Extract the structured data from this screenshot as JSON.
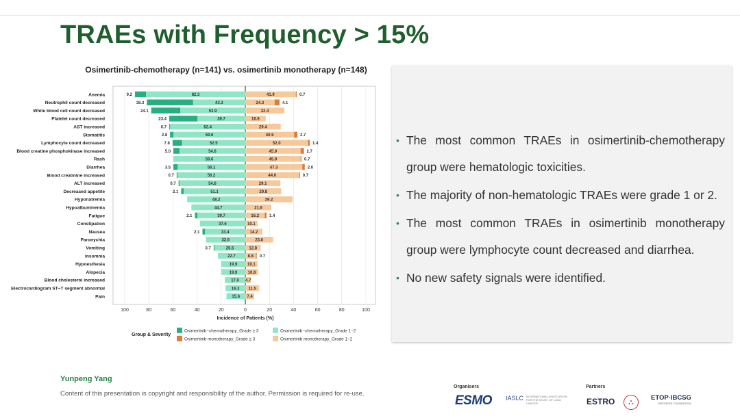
{
  "slide": {
    "title": "TRAEs with Frequency > 15%",
    "author": "Yunpeng Yang",
    "copyright": "Content of this presentation is copyright and responsibility of the author. Permission is required for re-use.",
    "organisers_label": "Organisers",
    "partners_label": "Partners",
    "logos": {
      "esmo": "ESMO",
      "iaslc": "IASLC",
      "iaslc_sub": "INTERNATIONAL ASSOCIATION FOR THE STUDY OF LUNG CANCER",
      "estro": "ESTRO",
      "etop": "ETOP·IBCSG",
      "etop_sub": "PARTNERS FOUNDATION"
    }
  },
  "bullets": [
    "The most common TRAEs in osimertinib-chemotherapy group were hematologic toxicities.",
    "The majority of non-hematologic TRAEs were grade 1 or 2.",
    "The most common TRAEs in osimertinib monotherapy group were lymphocyte count decreased and diarrhea.",
    "No new safety signals were identified."
  ],
  "chart_data": {
    "type": "bar",
    "orientation": "horizontal-diverging-stacked",
    "title": "Osimertinib-chemotherapy (n=141) vs. osimertinib monotherapy (n=148)",
    "xlabel": "Incidence of Patients (%)",
    "xlim": [
      -100,
      100
    ],
    "xticks": [
      "100",
      "80",
      "60",
      "40",
      "20",
      "0",
      "20",
      "40",
      "60",
      "80",
      "100"
    ],
    "legend_title": "Group & Severity",
    "colors": {
      "combo_g3": "#27b07f",
      "combo_g12": "#8ee6c7",
      "mono_g3": "#e07a34",
      "mono_g12": "#f7c89a"
    },
    "series": [
      {
        "name": "Osimertinib−chemotherapy_Grade ≥ 3",
        "key": "combo_g3"
      },
      {
        "name": "Osimertinib−chemotherapy_Grade 1−2",
        "key": "combo_g12"
      },
      {
        "name": "Osimertinib monotherapy_Grade ≥ 3",
        "key": "mono_g3"
      },
      {
        "name": "Osimertinib monotherapy_Grade 1−2",
        "key": "mono_g12"
      }
    ],
    "categories": [
      {
        "label": "Anemia",
        "combo_g3": "9.2",
        "combo_g12": "82.3",
        "mono_g12": "41.9",
        "mono_g3": "0.7"
      },
      {
        "label": "Neutrophil count decreased",
        "combo_g3": "38.3",
        "combo_g12": "43.3",
        "mono_g12": "24.3",
        "mono_g3": "4.1"
      },
      {
        "label": "White blood cell count decreased",
        "combo_g3": "24.1",
        "combo_g12": "53.9",
        "mono_g12": "32.4",
        "mono_g3": null
      },
      {
        "label": "Platelet count decreased",
        "combo_g3": "23.4",
        "combo_g12": "39.7",
        "mono_g12": "16.9",
        "mono_g3": null
      },
      {
        "label": "AST increased",
        "combo_g3": "0.7",
        "combo_g12": "62.4",
        "mono_g12": "29.4",
        "mono_g3": null
      },
      {
        "label": "Stomatitis",
        "combo_g3": "2.8",
        "combo_g12": "59.6",
        "mono_g12": "40.5",
        "mono_g3": "2.7"
      },
      {
        "label": "Lymphocyte count decreased",
        "combo_g3": "7.8",
        "combo_g12": "52.5",
        "mono_g12": "52.0",
        "mono_g3": "1.4"
      },
      {
        "label": "Blood creatine phosphokinase increased",
        "combo_g3": "5.0",
        "combo_g12": "54.6",
        "mono_g12": "45.9",
        "mono_g3": "2.7"
      },
      {
        "label": "Rash",
        "combo_g3": null,
        "combo_g12": "59.6",
        "mono_g12": "45.9",
        "mono_g3": "0.7"
      },
      {
        "label": "Diarrhea",
        "combo_g3": "3.5",
        "combo_g12": "56.1",
        "mono_g12": "47.3",
        "mono_g3": "2.0"
      },
      {
        "label": "Blood creatinine increased",
        "combo_g3": "0.7",
        "combo_g12": "56.2",
        "mono_g12": "44.6",
        "mono_g3": "0.7"
      },
      {
        "label": "ALT increased",
        "combo_g3": "0.7",
        "combo_g12": "54.6",
        "mono_g12": "29.1",
        "mono_g3": null
      },
      {
        "label": "Decreased appetite",
        "combo_g3": "2.1",
        "combo_g12": "51.1",
        "mono_g12": "29.8",
        "mono_g3": null
      },
      {
        "label": "Hyponatremia",
        "combo_g3": null,
        "combo_g12": "48.2",
        "mono_g12": "39.2",
        "mono_g3": null
      },
      {
        "label": "Hypoalbuminemia",
        "combo_g3": null,
        "combo_g12": "44.7",
        "mono_g12": "21.6",
        "mono_g3": null
      },
      {
        "label": "Fatigue",
        "combo_g3": "2.1",
        "combo_g12": "39.7",
        "mono_g12": "16.2",
        "mono_g3": "1.4"
      },
      {
        "label": "Constipation",
        "combo_g3": null,
        "combo_g12": "37.6",
        "mono_g12": "10.1",
        "mono_g3": null
      },
      {
        "label": "Nausea",
        "combo_g3": "2.1",
        "combo_g12": "33.4",
        "mono_g12": "14.2",
        "mono_g3": null
      },
      {
        "label": "Paronychia",
        "combo_g3": null,
        "combo_g12": "32.6",
        "mono_g12": "23.0",
        "mono_g3": null
      },
      {
        "label": "Vomiting",
        "combo_g3": "0.7",
        "combo_g12": "25.5",
        "mono_g12": "12.8",
        "mono_g3": null
      },
      {
        "label": "Insomnia",
        "combo_g3": null,
        "combo_g12": "22.7",
        "mono_g12": "8.8",
        "mono_g3": "0.7"
      },
      {
        "label": "Hypoesthesia",
        "combo_g3": null,
        "combo_g12": "19.9",
        "mono_g12": "10.1",
        "mono_g3": null
      },
      {
        "label": "Alopecia",
        "combo_g3": null,
        "combo_g12": "19.9",
        "mono_g12": "10.8",
        "mono_g3": null
      },
      {
        "label": "Blood cholesterol increased",
        "combo_g3": null,
        "combo_g12": "17.0",
        "mono_g12": "4.7",
        "mono_g3": null
      },
      {
        "label": "Electrocardiogram ST−T segment abnormal",
        "combo_g3": null,
        "combo_g12": "16.3",
        "mono_g12": "11.5",
        "mono_g3": null
      },
      {
        "label": "Pain",
        "combo_g3": null,
        "combo_g12": "15.6",
        "mono_g12": "7.4",
        "mono_g3": null
      }
    ]
  }
}
